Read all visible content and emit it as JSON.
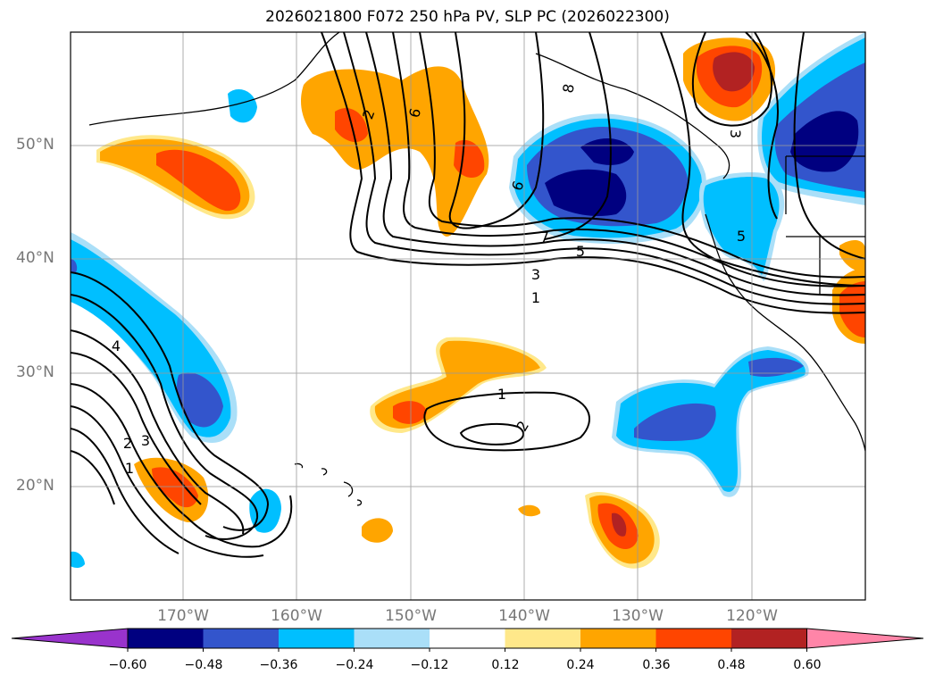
{
  "title": "2026021800 F072 250 hPa PV, SLP PC (2026022300)",
  "lat_labels": [
    "50°N",
    "40°N",
    "30°N",
    "20°N"
  ],
  "lon_labels": [
    "170°W",
    "160°W",
    "150°W",
    "140°W",
    "130°W",
    "120°W"
  ],
  "colorbar": {
    "tick_labels": [
      "−0.60",
      "−0.48",
      "−0.36",
      "−0.24",
      "−0.12",
      "0.12",
      "0.24",
      "0.36",
      "0.48",
      "0.60"
    ],
    "colors": [
      "#9933cc",
      "#000080",
      "#3355cc",
      "#00bfff",
      "#aadff8",
      "#ffffff",
      "#ffe88a",
      "#ffa500",
      "#ff4500",
      "#b22222",
      "#ff85a8"
    ]
  },
  "contour_labels": [
    "2",
    "6",
    "8",
    "3",
    "6",
    "7",
    "5",
    "3",
    "1",
    "5",
    "4",
    "2",
    "3",
    "1",
    "1",
    "2"
  ]
}
